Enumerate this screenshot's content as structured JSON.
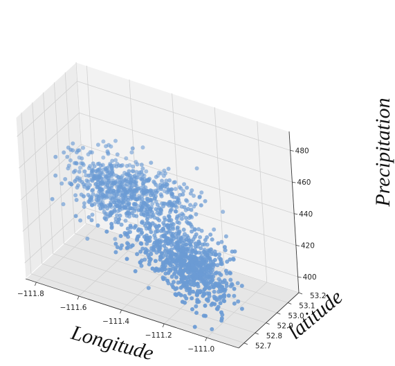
{
  "chart_data": {
    "type": "scatter",
    "projection": "3d",
    "title": "",
    "xlabel": "Longitude",
    "ylabel": "latitude",
    "zlabel": "Precipitation",
    "xlim": [
      -111.85,
      -110.85
    ],
    "ylim": [
      52.65,
      53.2
    ],
    "zlim": [
      390,
      492
    ],
    "x_ticks": [
      -111.8,
      -111.6,
      -111.4,
      -111.2,
      -111.0
    ],
    "x_tick_labels": [
      "−111.8",
      "−111.6",
      "−111.4",
      "−111.2",
      "−111.0"
    ],
    "y_ticks": [
      52.7,
      52.8,
      52.9,
      53.0,
      53.1,
      53.2
    ],
    "y_tick_labels": [
      "52.7",
      "52.8",
      "52.9",
      "53.0",
      "53.1",
      "53.2"
    ],
    "z_ticks": [
      400,
      420,
      440,
      460,
      480
    ],
    "z_tick_labels": [
      "400",
      "420",
      "440",
      "460",
      "480"
    ],
    "grid": true,
    "marker_color": "#6b9bd4",
    "point_count_estimate": 1500,
    "clusters": [
      {
        "x": -111.65,
        "y": 53.05,
        "z": 432,
        "sx": 0.09,
        "sy": 0.05,
        "sz": 10,
        "n": 350
      },
      {
        "x": -111.42,
        "y": 52.95,
        "z": 440,
        "sx": 0.12,
        "sy": 0.08,
        "sz": 9,
        "n": 400
      },
      {
        "x": -111.2,
        "y": 52.8,
        "z": 425,
        "sx": 0.1,
        "sy": 0.06,
        "sz": 8,
        "n": 450
      },
      {
        "x": -111.05,
        "y": 52.72,
        "z": 420,
        "sx": 0.07,
        "sy": 0.05,
        "sz": 9,
        "n": 300
      }
    ]
  }
}
